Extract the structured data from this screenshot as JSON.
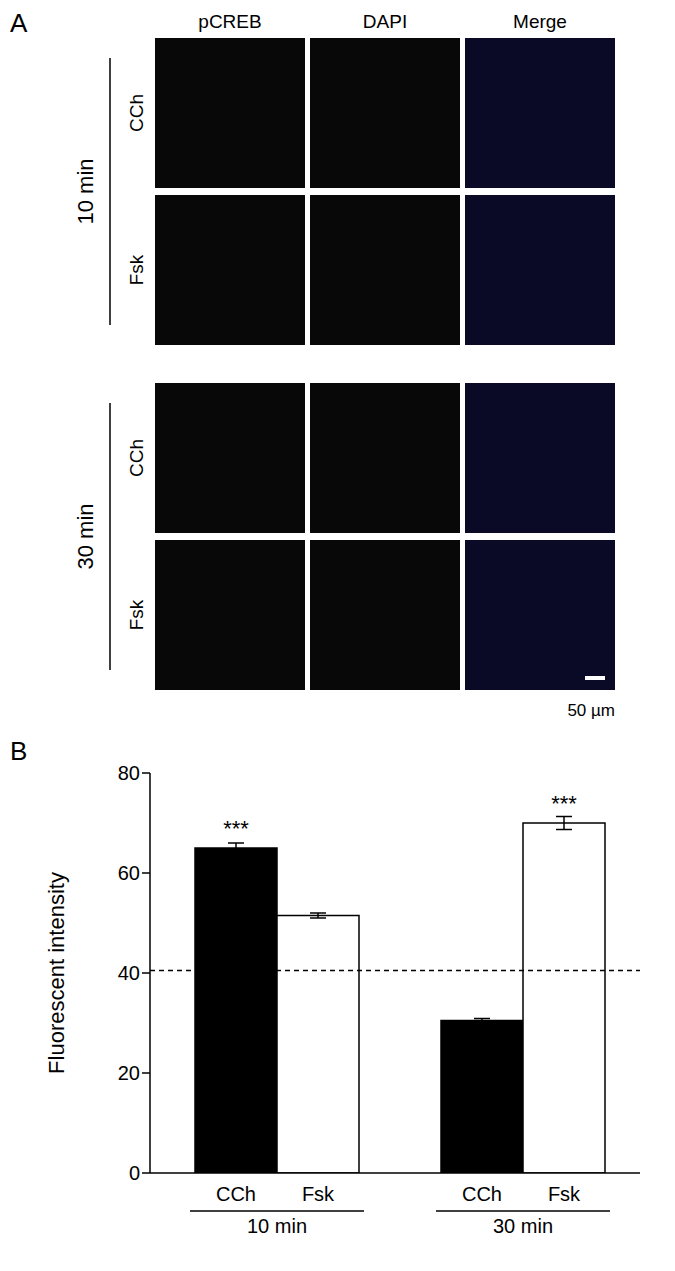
{
  "panel_a": {
    "label": "A",
    "columns": [
      "pCREB",
      "DAPI",
      "Merge"
    ],
    "groups": [
      {
        "label": "10 min",
        "rows": [
          "CCh",
          "Fsk"
        ]
      },
      {
        "label": "30 min",
        "rows": [
          "CCh",
          "Fsk"
        ]
      }
    ],
    "scale_bar": "50 µm"
  },
  "chart_data": {
    "type": "bar",
    "panel_label": "B",
    "y_label": "Fluorescent intensity",
    "categories": [
      "CCh",
      "Fsk",
      null,
      "CCh",
      "Fsk"
    ],
    "category_groups": [
      "10 min",
      "10 min",
      null,
      "30 min",
      "30 min"
    ],
    "values": [
      65,
      51.5,
      null,
      30.5,
      70
    ],
    "errors": [
      1,
      0.5,
      null,
      0.4,
      1.3
    ],
    "significance": [
      "***",
      null,
      null,
      null,
      "***"
    ],
    "colors": [
      "#000000",
      "#ffffff",
      null,
      "#000000",
      "#ffffff"
    ],
    "ylim": [
      0,
      80
    ],
    "yticks": [
      0,
      20,
      40,
      60,
      80
    ],
    "reference_line": {
      "y": 40.5,
      "line_style": "dashed"
    },
    "grid": false
  }
}
